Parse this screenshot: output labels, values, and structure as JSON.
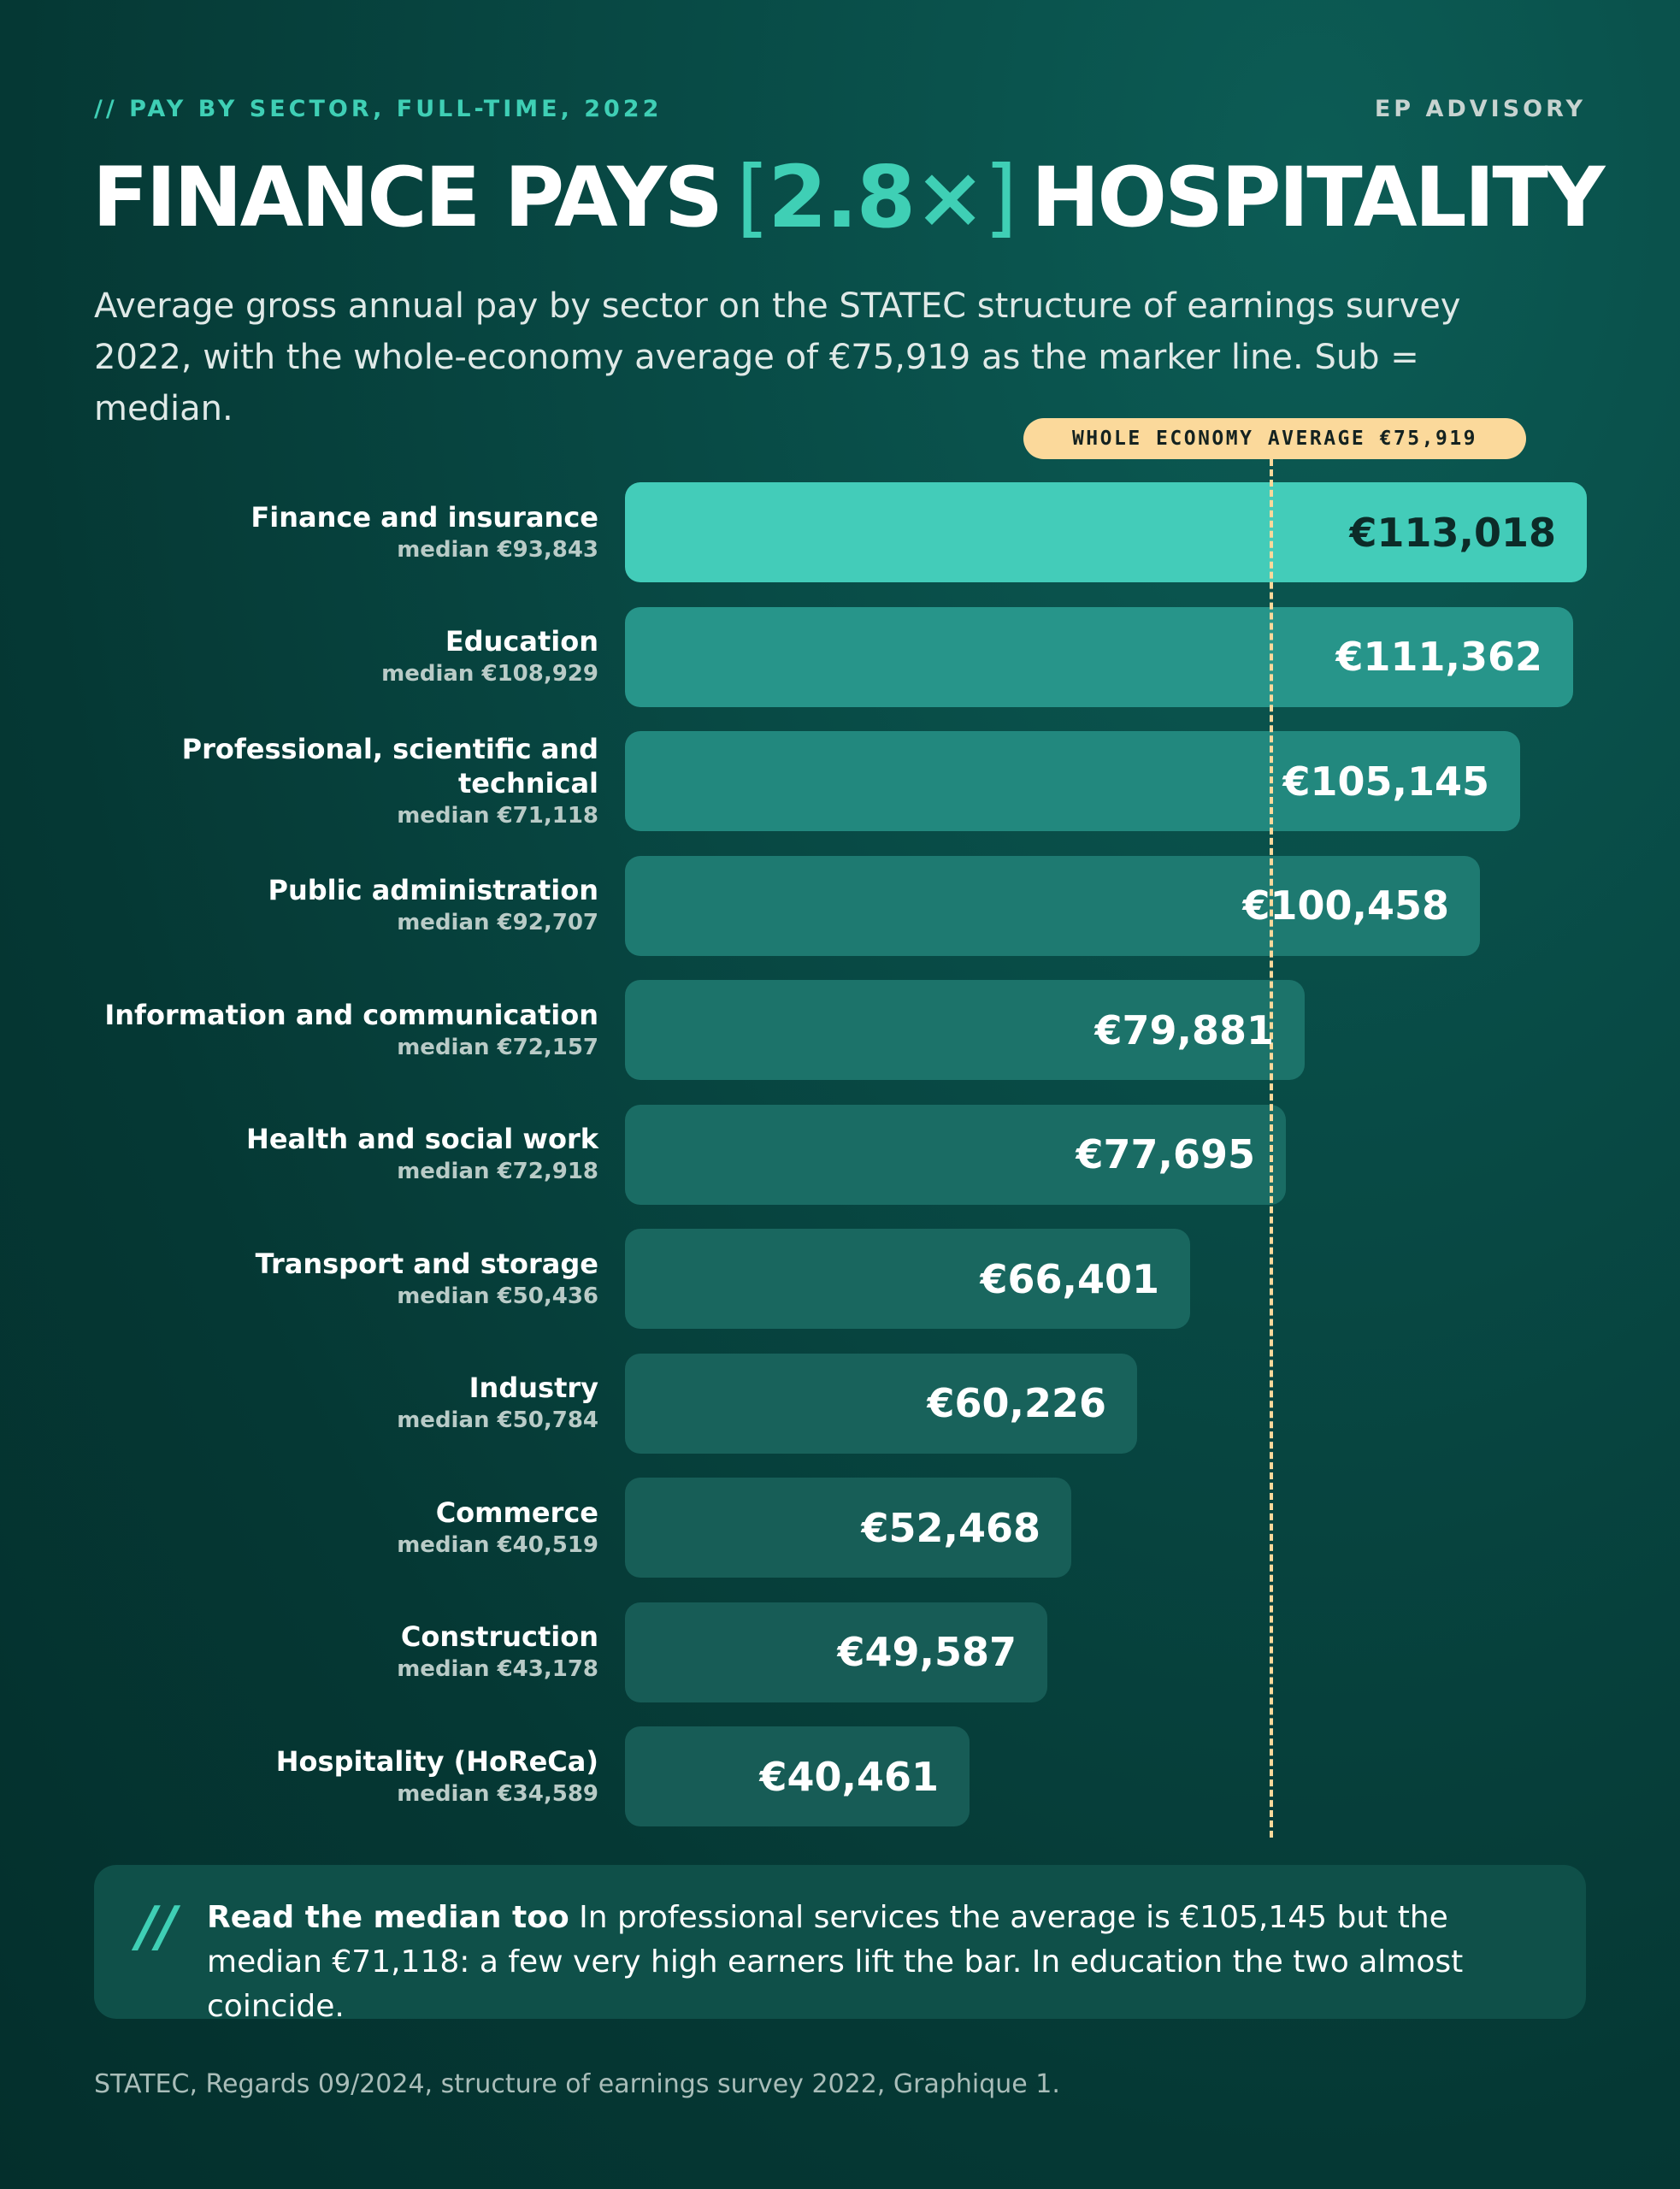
{
  "header": {
    "kicker": "// PAY BY SECTOR, FULL-TIME, 2022",
    "brand": "EP ADVISORY"
  },
  "headline": {
    "part1": "FINANCE PAYS",
    "bracket_open": "[",
    "multiplier": "2.8×",
    "bracket_close": "]",
    "part2": "HOSPITALITY"
  },
  "subtitle": "Average gross annual pay by sector on the STATEC structure of earnings survey 2022, with the whole-economy average of €75,919 as the marker line. Sub = median.",
  "chart_data": {
    "type": "bar",
    "orientation": "horizontal",
    "categories": [
      "Finance and insurance",
      "Education",
      "Professional, scientific and technical",
      "Public administration",
      "Information and communication",
      "Health and social work",
      "Transport and storage",
      "Industry",
      "Commerce",
      "Construction",
      "Hospitality (HoReCa)"
    ],
    "values": [
      113018,
      111362,
      105145,
      100458,
      79881,
      77695,
      66401,
      60226,
      52468,
      49587,
      40461
    ],
    "value_labels": [
      "€113,018",
      "€111,362",
      "€105,145",
      "€100,458",
      "€79,881",
      "€77,695",
      "€66,401",
      "€60,226",
      "€52,468",
      "€49,587",
      "€40,461"
    ],
    "medians": [
      93843,
      108929,
      71118,
      92707,
      72157,
      72918,
      50436,
      50784,
      40519,
      43178,
      34589
    ],
    "median_labels": [
      "median €93,843",
      "median €108,929",
      "median €71,118",
      "median €92,707",
      "median €72,157",
      "median €72,918",
      "median €50,436",
      "median €50,784",
      "median €40,519",
      "median €43,178",
      "median €34,589"
    ],
    "reference_line": {
      "label": "WHOLE ECONOMY AVERAGE €75,919",
      "value": 75919
    },
    "xlim": [
      0,
      113018
    ],
    "grid": false,
    "highlight_color": "#43ccb9",
    "bar_colors": [
      "#43ccb9",
      "#27958a",
      "#22887e",
      "#1e7a71",
      "#1c736a",
      "#1a6c64",
      "#19675f",
      "#18625b",
      "#175e57",
      "#175c56",
      "#175c56"
    ],
    "label_colors": [
      "#0c2b28",
      "#ffffff",
      "#ffffff",
      "#ffffff",
      "#ffffff",
      "#ffffff",
      "#ffffff",
      "#ffffff",
      "#ffffff",
      "#ffffff",
      "#ffffff"
    ]
  },
  "note": {
    "icon": "double-slash-icon",
    "lead": "Read the median too",
    "body": " In professional services the average is €105,145 but the median €71,118: a few very high earners lift the bar. In education the two almost coincide."
  },
  "source": "STATEC, Regards 09/2024, structure of earnings survey 2022, Graphique 1."
}
